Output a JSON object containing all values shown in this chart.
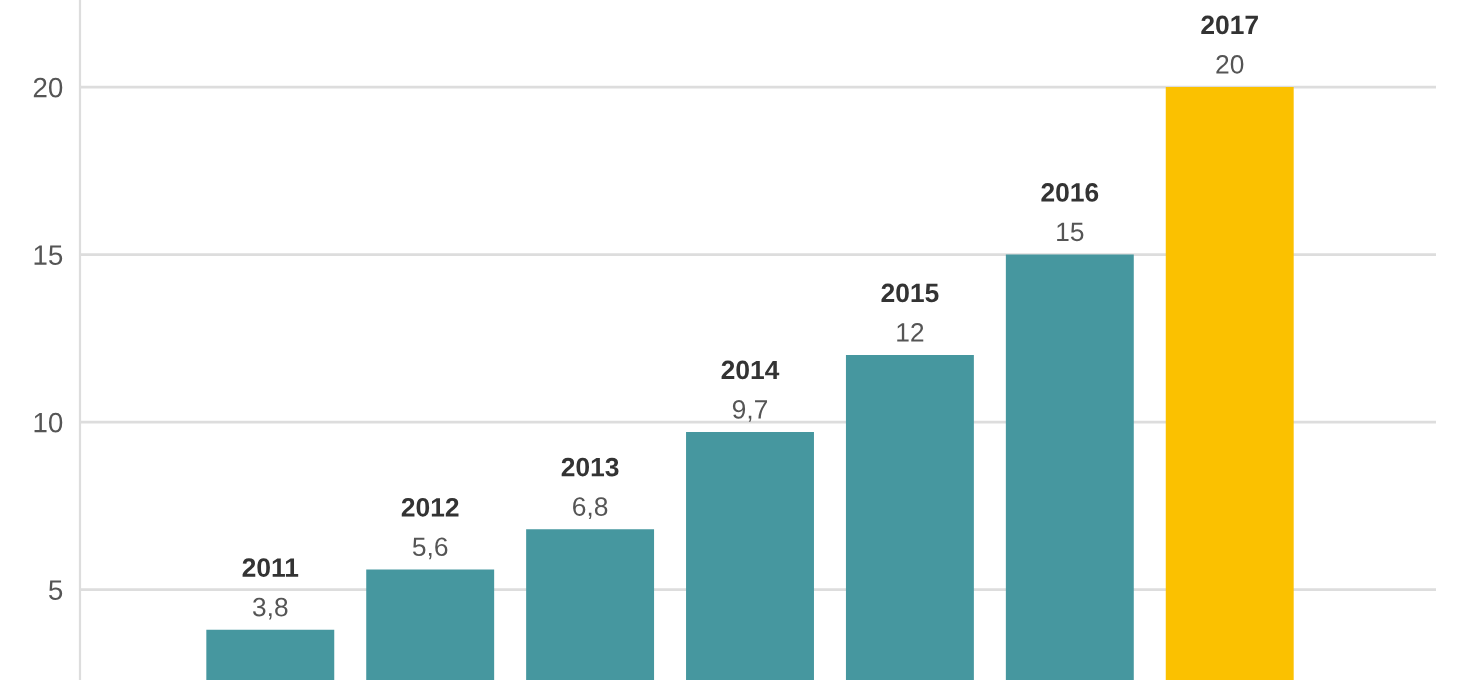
{
  "chart_data": {
    "type": "bar",
    "categories": [
      "2011",
      "2012",
      "2013",
      "2014",
      "2015",
      "2016",
      "2017"
    ],
    "values": [
      3.8,
      5.6,
      6.8,
      9.7,
      12,
      15,
      20
    ],
    "value_labels": [
      "3,8",
      "5,6",
      "6,8",
      "9,7",
      "12",
      "15",
      "20"
    ],
    "colors": [
      "#46979f",
      "#46979f",
      "#46979f",
      "#46979f",
      "#46979f",
      "#46979f",
      "#fbc100"
    ],
    "ylim": [
      2.3,
      22.6
    ],
    "yticks": [
      5,
      10,
      15,
      20
    ],
    "grid": "y"
  }
}
